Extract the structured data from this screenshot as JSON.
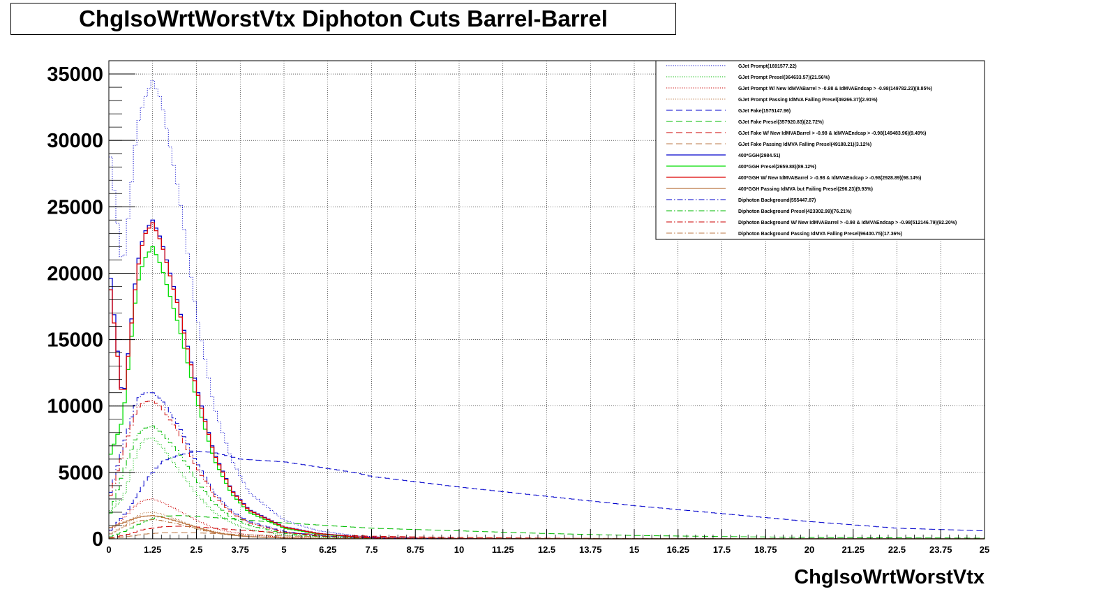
{
  "chart_data": {
    "type": "line",
    "title": "ChgIsoWrtWorstVtx Diphoton Cuts Barrel-Barrel",
    "xlabel": "ChgIsoWrtWorstVtx",
    "ylabel": "",
    "xlim": [
      0,
      25
    ],
    "ylim": [
      0,
      36000
    ],
    "grid": true,
    "legend_position": "top-right",
    "x_ticks": [
      "0",
      "1.25",
      "2.5",
      "3.75",
      "5",
      "6.25",
      "7.5",
      "8.75",
      "10",
      "11.25",
      "12.5",
      "13.75",
      "15",
      "16.25",
      "17.5",
      "18.75",
      "20",
      "21.25",
      "22.5",
      "23.75",
      "25"
    ],
    "y_ticks": [
      "0",
      "5000",
      "10000",
      "15000",
      "20000",
      "25000",
      "30000",
      "35000"
    ],
    "series": [
      {
        "name": "GJet Prompt(1691577.22)",
        "color": "#0000cc",
        "style": "dotted",
        "x": [
          0,
          0.4,
          0.8,
          1.0,
          1.25,
          1.5,
          2.0,
          2.5,
          3.0,
          3.5,
          4.0,
          5.0,
          6.0,
          7.0,
          8.0,
          10,
          12.5,
          15,
          20,
          25
        ],
        "values": [
          30000,
          20000,
          31000,
          33000,
          34500,
          33000,
          26000,
          17000,
          10000,
          6000,
          3500,
          1400,
          600,
          250,
          100,
          30,
          10,
          5,
          0,
          0
        ]
      },
      {
        "name": "GJet Prompt Presel(364633.57)(21.56%)",
        "color": "#00bb00",
        "style": "dotted",
        "x": [
          0,
          0.4,
          0.8,
          1.0,
          1.25,
          1.5,
          2.0,
          2.5,
          3.0,
          3.5,
          4.0,
          5.0,
          6.0,
          7.0,
          8.0,
          10,
          12.5,
          15,
          20,
          25
        ],
        "values": [
          2000,
          3000,
          6500,
          7500,
          7600,
          7000,
          5200,
          3400,
          2000,
          1200,
          700,
          300,
          120,
          50,
          20,
          5,
          0,
          0,
          0,
          0
        ]
      },
      {
        "name": "GJet Prompt W/ New IdMVABarrel > -0.98 & IdMVAEndcap > -0.98(149782.23)(8.85%)",
        "color": "#cc0000",
        "style": "dotted",
        "x": [
          0,
          0.4,
          0.8,
          1.0,
          1.25,
          1.5,
          2.0,
          2.5,
          3.0,
          3.5,
          4.0,
          5.0,
          6.0,
          7.0,
          8.0,
          10,
          12.5,
          15,
          20,
          25
        ],
        "values": [
          500,
          1500,
          2600,
          2900,
          3000,
          2800,
          2100,
          1400,
          800,
          500,
          300,
          120,
          50,
          20,
          8,
          2,
          0,
          0,
          0,
          0
        ]
      },
      {
        "name": "GJet Prompt Passing IdMVA Failing Presel(49266.37)(2.91%)",
        "color": "#bb7744",
        "style": "dotted",
        "x": [
          0,
          0.4,
          0.8,
          1.0,
          1.25,
          1.5,
          2.0,
          2.5,
          3.0,
          3.5,
          4.0,
          5.0,
          6.0,
          7.0,
          8.0,
          10,
          12.5,
          15,
          20,
          25
        ],
        "values": [
          300,
          900,
          1700,
          1950,
          2000,
          1900,
          1400,
          900,
          550,
          330,
          200,
          80,
          30,
          10,
          5,
          1,
          0,
          0,
          0,
          0
        ]
      },
      {
        "name": "GJet Fake(1575147.96)",
        "color": "#0000cc",
        "style": "dashed",
        "x": [
          0,
          0.5,
          1.0,
          1.5,
          2.0,
          2.5,
          3.0,
          3.75,
          5,
          6.25,
          7.0,
          7.5,
          10,
          12.5,
          15,
          17.5,
          20,
          22.5,
          25
        ],
        "values": [
          500,
          2000,
          4200,
          5800,
          6300,
          6600,
          6500,
          6000,
          5800,
          5300,
          5000,
          4700,
          3900,
          3200,
          2500,
          1900,
          1300,
          800,
          600
        ]
      },
      {
        "name": "GJet Fake Presel(357920.83)(22.72%)",
        "color": "#00bb00",
        "style": "dashed",
        "x": [
          0,
          0.5,
          1.0,
          1.5,
          2.0,
          2.5,
          3.0,
          3.75,
          5,
          6.25,
          7.5,
          10,
          12.5,
          15,
          20,
          25
        ],
        "values": [
          100,
          600,
          1300,
          1700,
          1750,
          1700,
          1600,
          1450,
          1200,
          1000,
          800,
          600,
          400,
          250,
          100,
          50
        ]
      },
      {
        "name": "GJet Fake W/ New IdMVABarrel > -0.98 & IdMVAEndcap > -0.98(149483.96)(9.49%)",
        "color": "#cc0000",
        "style": "dashed",
        "x": [
          0,
          0.5,
          1.0,
          1.5,
          2.0,
          2.5,
          3.0,
          3.75,
          5,
          6.25,
          7.5,
          10,
          12.5,
          15,
          20,
          25
        ],
        "values": [
          50,
          300,
          700,
          900,
          950,
          900,
          800,
          650,
          450,
          300,
          200,
          100,
          50,
          20,
          5,
          0
        ]
      },
      {
        "name": "GJet Fake Passing IdMVA Falling Presel(49188.21)(3.12%)",
        "color": "#bb7744",
        "style": "dashed",
        "x": [
          0,
          0.5,
          1.0,
          1.5,
          2.0,
          2.5,
          3.0,
          3.75,
          5,
          6.25,
          7.5,
          10,
          12.5,
          15,
          20,
          25
        ],
        "values": [
          20,
          150,
          350,
          450,
          470,
          450,
          400,
          320,
          220,
          150,
          100,
          50,
          20,
          10,
          0,
          0
        ]
      },
      {
        "name": "400*GGH(2984.51)",
        "color": "#0000cc",
        "style": "solid",
        "x": [
          0,
          0.4,
          0.8,
          1.0,
          1.25,
          1.5,
          2.0,
          2.5,
          3.0,
          3.5,
          4.0,
          5.0,
          6.0,
          7.0,
          8.0,
          10,
          12.5,
          15,
          20,
          25
        ],
        "values": [
          21000,
          10000,
          20500,
          23000,
          24000,
          22500,
          17500,
          11500,
          6500,
          3700,
          2200,
          900,
          400,
          170,
          70,
          20,
          5,
          0,
          0,
          0
        ]
      },
      {
        "name": "400*GGH Presel(2659.88)(89.12%)",
        "color": "#00dd00",
        "style": "solid",
        "x": [
          0,
          0.4,
          0.8,
          1.0,
          1.25,
          1.5,
          2.0,
          2.5,
          3.0,
          3.5,
          4.0,
          5.0,
          6.0,
          7.0,
          8.0,
          10,
          12.5,
          15,
          20,
          25
        ],
        "values": [
          6000,
          9000,
          19000,
          21000,
          22000,
          20500,
          16000,
          10500,
          6000,
          3400,
          2000,
          800,
          350,
          150,
          60,
          15,
          5,
          0,
          0,
          0
        ]
      },
      {
        "name": "400*GGH W/ New IdMVABarrel > -0.98 & IdMVAEndcap > -0.98(2928.89)(98.14%)",
        "color": "#dd0000",
        "style": "solid",
        "x": [
          0,
          0.4,
          0.8,
          1.0,
          1.25,
          1.5,
          2.0,
          2.5,
          3.0,
          3.5,
          4.0,
          5.0,
          6.0,
          7.0,
          8.0,
          10,
          12.5,
          15,
          20,
          25
        ],
        "values": [
          20000,
          10000,
          20000,
          22800,
          23800,
          22300,
          17300,
          11300,
          6400,
          3650,
          2150,
          880,
          390,
          165,
          68,
          20,
          5,
          0,
          0,
          0
        ]
      },
      {
        "name": "400*GGH Passing IdMVA but Failing Presel(296.23)(9.93%)",
        "color": "#bb7744",
        "style": "solid",
        "x": [
          0,
          0.4,
          0.8,
          1.0,
          1.25,
          1.5,
          2.0,
          2.5,
          3.0,
          3.5,
          4.0,
          5.0,
          6.0,
          7.0,
          8.0,
          10,
          12.5,
          15,
          20,
          25
        ],
        "values": [
          800,
          1200,
          1600,
          1700,
          1750,
          1650,
          1300,
          850,
          500,
          280,
          160,
          65,
          28,
          12,
          5,
          1,
          0,
          0,
          0,
          0
        ]
      },
      {
        "name": "Diphoton Background(555447.87)",
        "color": "#0000cc",
        "style": "dashdot",
        "x": [
          0,
          0.4,
          0.8,
          1.0,
          1.25,
          1.5,
          2.0,
          2.5,
          3.0,
          3.5,
          4.0,
          5.0,
          6.0,
          7.0,
          8.0,
          10,
          12.5,
          15,
          20,
          25
        ],
        "values": [
          3000,
          7000,
          10500,
          11000,
          11000,
          10500,
          8500,
          5800,
          3500,
          2100,
          1300,
          550,
          240,
          100,
          40,
          10,
          0,
          0,
          0,
          0
        ]
      },
      {
        "name": "Diphoton Background Presel(423302.99)(76.21%)",
        "color": "#00bb00",
        "style": "dashdot",
        "x": [
          0,
          0.4,
          0.8,
          1.0,
          1.25,
          1.5,
          2.0,
          2.5,
          3.0,
          3.5,
          4.0,
          5.0,
          6.0,
          7.0,
          8.0,
          10,
          12.5,
          15,
          20,
          25
        ],
        "values": [
          1500,
          5000,
          7800,
          8300,
          8500,
          8000,
          6500,
          4400,
          2700,
          1600,
          1000,
          420,
          180,
          75,
          30,
          8,
          0,
          0,
          0,
          0
        ]
      },
      {
        "name": "Diphoton Background W/ New IdMVABarrel > -0.98 & IdMVAEndcap > -0.98(512146.79)(92.20%)",
        "color": "#cc0000",
        "style": "dashdot",
        "x": [
          0,
          0.4,
          0.8,
          1.0,
          1.25,
          1.5,
          2.0,
          2.5,
          3.0,
          3.5,
          4.0,
          5.0,
          6.0,
          7.0,
          8.0,
          10,
          12.5,
          15,
          20,
          25
        ],
        "values": [
          2800,
          6500,
          9800,
          10300,
          10400,
          9900,
          8000,
          5400,
          3300,
          1950,
          1200,
          500,
          220,
          90,
          36,
          9,
          0,
          0,
          0,
          0
        ]
      },
      {
        "name": "Diphoton Background Passing IdMVA Falling Presel(96400.75)(17.36%)",
        "color": "#bb7744",
        "style": "dashdot",
        "x": [
          0,
          0.4,
          0.8,
          1.0,
          1.25,
          1.5,
          2.0,
          2.5,
          3.0,
          3.5,
          4.0,
          5.0,
          6.0,
          7.0,
          8.0,
          10,
          12.5,
          15,
          20,
          25
        ],
        "values": [
          300,
          900,
          1300,
          1400,
          1450,
          1380,
          1100,
          750,
          450,
          270,
          160,
          65,
          28,
          12,
          5,
          1,
          0,
          0,
          0,
          0
        ]
      }
    ]
  }
}
